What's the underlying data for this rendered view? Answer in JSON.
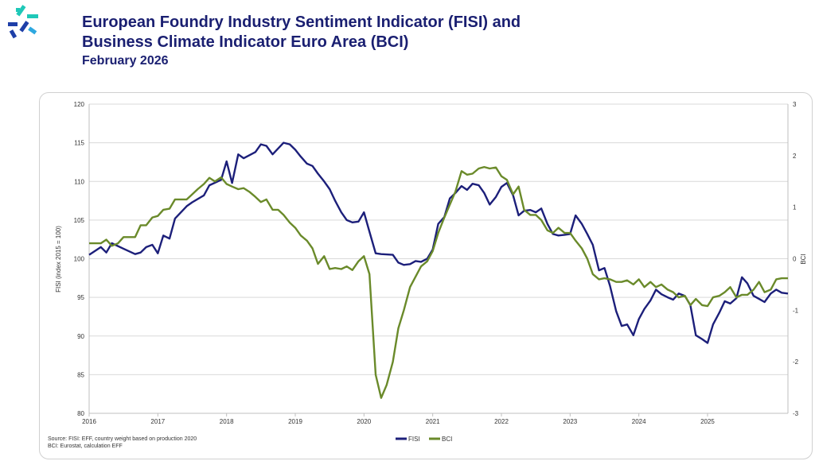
{
  "header": {
    "title_line1": "European Foundry Industry Sentiment Indicator (FISI) and",
    "title_line2": "Business Climate Indicator Euro Area (BCI)",
    "subtitle": "February 2026"
  },
  "logo": {
    "icon": "efs-logo-icon",
    "colors": [
      "#1e3fa8",
      "#1fc8b8",
      "#2ea8e0"
    ]
  },
  "source": {
    "line1": "Source: FISI: EFF, country weight based on production 2020",
    "line2": "BCI: Eurostat, calculation EFF"
  },
  "chart_data": {
    "type": "line",
    "title": "",
    "xlabel": "",
    "ylabel": "FISI (index 2015 = 100)",
    "y2label": "BCI",
    "xlim": [
      2016,
      2025.92
    ],
    "ylim": [
      80,
      120
    ],
    "y2lim": [
      -3,
      3
    ],
    "x_tick_labels": [
      "2016",
      "2017",
      "2018",
      "2019",
      "2020",
      "2021",
      "2022",
      "2023",
      "2024",
      "2025"
    ],
    "y_tick_labels": [
      "80",
      "85",
      "90",
      "95",
      "100",
      "105",
      "110",
      "115",
      "120"
    ],
    "y2_tick_labels": [
      "-3",
      "-2",
      "-1",
      "0",
      "1",
      "2",
      "3"
    ],
    "grid": true,
    "legend": "bottom-center",
    "series": [
      {
        "name": "FISI",
        "axis": "left",
        "color": "#1c1f7a",
        "points": [
          [
            2016.0,
            100.5
          ],
          [
            2016.17,
            101.5
          ],
          [
            2016.25,
            100.8
          ],
          [
            2016.33,
            102.0
          ],
          [
            2016.5,
            101.3
          ],
          [
            2016.67,
            100.6
          ],
          [
            2016.75,
            100.8
          ],
          [
            2016.83,
            101.5
          ],
          [
            2016.92,
            101.8
          ],
          [
            2017.0,
            100.7
          ],
          [
            2017.08,
            103.0
          ],
          [
            2017.17,
            102.6
          ],
          [
            2017.25,
            105.2
          ],
          [
            2017.42,
            106.8
          ],
          [
            2017.5,
            107.3
          ],
          [
            2017.67,
            108.2
          ],
          [
            2017.75,
            109.5
          ],
          [
            2017.92,
            110.2
          ],
          [
            2018.0,
            112.6
          ],
          [
            2018.08,
            109.8
          ],
          [
            2018.17,
            113.5
          ],
          [
            2018.25,
            113.0
          ],
          [
            2018.42,
            113.8
          ],
          [
            2018.5,
            114.8
          ],
          [
            2018.58,
            114.6
          ],
          [
            2018.67,
            113.5
          ],
          [
            2018.83,
            115.0
          ],
          [
            2018.92,
            114.8
          ],
          [
            2019.0,
            114.1
          ],
          [
            2019.08,
            113.2
          ],
          [
            2019.17,
            112.3
          ],
          [
            2019.25,
            112.0
          ],
          [
            2019.33,
            111.0
          ],
          [
            2019.42,
            110.0
          ],
          [
            2019.5,
            109.0
          ],
          [
            2019.58,
            107.5
          ],
          [
            2019.67,
            106.0
          ],
          [
            2019.75,
            105.0
          ],
          [
            2019.83,
            104.7
          ],
          [
            2019.92,
            104.8
          ],
          [
            2020.0,
            106.0
          ],
          [
            2020.08,
            103.5
          ],
          [
            2020.17,
            100.7
          ],
          [
            2020.25,
            100.6
          ],
          [
            2020.42,
            100.5
          ],
          [
            2020.5,
            99.5
          ],
          [
            2020.58,
            99.2
          ],
          [
            2020.67,
            99.3
          ],
          [
            2020.75,
            99.7
          ],
          [
            2020.83,
            99.6
          ],
          [
            2020.92,
            100.0
          ],
          [
            2021.0,
            101.2
          ],
          [
            2021.08,
            104.5
          ],
          [
            2021.17,
            105.4
          ],
          [
            2021.25,
            107.8
          ],
          [
            2021.33,
            108.5
          ],
          [
            2021.42,
            109.4
          ],
          [
            2021.5,
            108.9
          ],
          [
            2021.58,
            109.7
          ],
          [
            2021.67,
            109.5
          ],
          [
            2021.75,
            108.5
          ],
          [
            2021.83,
            107.0
          ],
          [
            2021.92,
            108.0
          ],
          [
            2022.0,
            109.3
          ],
          [
            2022.08,
            109.8
          ],
          [
            2022.17,
            108.2
          ],
          [
            2022.25,
            105.6
          ],
          [
            2022.33,
            106.2
          ],
          [
            2022.42,
            106.3
          ],
          [
            2022.5,
            106.0
          ],
          [
            2022.58,
            106.5
          ],
          [
            2022.67,
            104.5
          ],
          [
            2022.75,
            103.2
          ],
          [
            2022.83,
            103.0
          ],
          [
            2022.92,
            103.1
          ],
          [
            2023.0,
            103.2
          ],
          [
            2023.08,
            105.6
          ],
          [
            2023.17,
            104.5
          ],
          [
            2023.25,
            103.2
          ],
          [
            2023.33,
            101.8
          ],
          [
            2023.42,
            98.5
          ],
          [
            2023.5,
            98.8
          ],
          [
            2023.58,
            96.5
          ],
          [
            2023.67,
            93.2
          ],
          [
            2023.75,
            91.3
          ],
          [
            2023.83,
            91.5
          ],
          [
            2023.92,
            90.1
          ],
          [
            2024.0,
            92.2
          ],
          [
            2024.08,
            93.5
          ],
          [
            2024.17,
            94.6
          ],
          [
            2024.25,
            96.0
          ],
          [
            2024.33,
            95.4
          ],
          [
            2024.42,
            95.0
          ],
          [
            2024.5,
            94.7
          ],
          [
            2024.58,
            95.5
          ],
          [
            2024.67,
            95.2
          ],
          [
            2024.75,
            94.0
          ],
          [
            2024.83,
            90.1
          ],
          [
            2024.92,
            89.6
          ],
          [
            2025.0,
            89.1
          ],
          [
            2025.08,
            91.5
          ],
          [
            2025.17,
            93.0
          ],
          [
            2025.25,
            94.5
          ],
          [
            2025.33,
            94.2
          ],
          [
            2025.42,
            94.9
          ],
          [
            2025.5,
            97.6
          ],
          [
            2025.58,
            96.8
          ],
          [
            2025.67,
            95.2
          ],
          [
            2025.75,
            94.8
          ],
          [
            2025.83,
            94.4
          ],
          [
            2025.92,
            95.5
          ],
          [
            2026.0,
            96.0
          ],
          [
            2026.08,
            95.6
          ],
          [
            2026.17,
            95.5
          ]
        ]
      },
      {
        "name": "BCI",
        "axis": "right",
        "color": "#6a8a2a",
        "points": [
          [
            2016.0,
            0.3
          ],
          [
            2016.17,
            0.3
          ],
          [
            2016.25,
            0.37
          ],
          [
            2016.33,
            0.25
          ],
          [
            2016.42,
            0.3
          ],
          [
            2016.5,
            0.42
          ],
          [
            2016.67,
            0.42
          ],
          [
            2016.75,
            0.65
          ],
          [
            2016.83,
            0.65
          ],
          [
            2016.92,
            0.8
          ],
          [
            2017.0,
            0.83
          ],
          [
            2017.08,
            0.95
          ],
          [
            2017.17,
            0.97
          ],
          [
            2017.25,
            1.15
          ],
          [
            2017.33,
            1.15
          ],
          [
            2017.42,
            1.15
          ],
          [
            2017.5,
            1.25
          ],
          [
            2017.58,
            1.35
          ],
          [
            2017.67,
            1.45
          ],
          [
            2017.75,
            1.57
          ],
          [
            2017.83,
            1.5
          ],
          [
            2017.92,
            1.58
          ],
          [
            2018.0,
            1.45
          ],
          [
            2018.08,
            1.4
          ],
          [
            2018.17,
            1.35
          ],
          [
            2018.25,
            1.37
          ],
          [
            2018.33,
            1.3
          ],
          [
            2018.42,
            1.2
          ],
          [
            2018.5,
            1.1
          ],
          [
            2018.58,
            1.15
          ],
          [
            2018.67,
            0.95
          ],
          [
            2018.75,
            0.95
          ],
          [
            2018.83,
            0.85
          ],
          [
            2018.92,
            0.7
          ],
          [
            2019.0,
            0.6
          ],
          [
            2019.08,
            0.45
          ],
          [
            2019.17,
            0.35
          ],
          [
            2019.25,
            0.2
          ],
          [
            2019.33,
            -0.1
          ],
          [
            2019.42,
            0.05
          ],
          [
            2019.5,
            -0.2
          ],
          [
            2019.58,
            -0.18
          ],
          [
            2019.67,
            -0.2
          ],
          [
            2019.75,
            -0.15
          ],
          [
            2019.83,
            -0.22
          ],
          [
            2019.92,
            -0.05
          ],
          [
            2020.0,
            0.05
          ],
          [
            2020.08,
            -0.3
          ],
          [
            2020.17,
            -2.25
          ],
          [
            2020.25,
            -2.7
          ],
          [
            2020.33,
            -2.45
          ],
          [
            2020.42,
            -2.0
          ],
          [
            2020.5,
            -1.35
          ],
          [
            2020.58,
            -1.0
          ],
          [
            2020.67,
            -0.55
          ],
          [
            2020.75,
            -0.35
          ],
          [
            2020.83,
            -0.15
          ],
          [
            2020.92,
            -0.05
          ],
          [
            2021.0,
            0.15
          ],
          [
            2021.08,
            0.5
          ],
          [
            2021.17,
            0.8
          ],
          [
            2021.25,
            1.05
          ],
          [
            2021.33,
            1.3
          ],
          [
            2021.42,
            1.7
          ],
          [
            2021.5,
            1.63
          ],
          [
            2021.58,
            1.65
          ],
          [
            2021.67,
            1.75
          ],
          [
            2021.75,
            1.78
          ],
          [
            2021.83,
            1.75
          ],
          [
            2021.92,
            1.77
          ],
          [
            2022.0,
            1.6
          ],
          [
            2022.08,
            1.53
          ],
          [
            2022.17,
            1.25
          ],
          [
            2022.25,
            1.4
          ],
          [
            2022.33,
            0.95
          ],
          [
            2022.42,
            0.85
          ],
          [
            2022.5,
            0.85
          ],
          [
            2022.58,
            0.75
          ],
          [
            2022.67,
            0.55
          ],
          [
            2022.75,
            0.5
          ],
          [
            2022.83,
            0.6
          ],
          [
            2022.92,
            0.5
          ],
          [
            2023.0,
            0.5
          ],
          [
            2023.08,
            0.35
          ],
          [
            2023.17,
            0.2
          ],
          [
            2023.25,
            0.0
          ],
          [
            2023.33,
            -0.3
          ],
          [
            2023.42,
            -0.4
          ],
          [
            2023.5,
            -0.38
          ],
          [
            2023.58,
            -0.4
          ],
          [
            2023.67,
            -0.45
          ],
          [
            2023.75,
            -0.45
          ],
          [
            2023.83,
            -0.42
          ],
          [
            2023.92,
            -0.5
          ],
          [
            2024.0,
            -0.4
          ],
          [
            2024.08,
            -0.55
          ],
          [
            2024.17,
            -0.45
          ],
          [
            2024.25,
            -0.55
          ],
          [
            2024.33,
            -0.5
          ],
          [
            2024.42,
            -0.6
          ],
          [
            2024.5,
            -0.65
          ],
          [
            2024.58,
            -0.75
          ],
          [
            2024.67,
            -0.72
          ],
          [
            2024.75,
            -0.9
          ],
          [
            2024.83,
            -0.78
          ],
          [
            2024.92,
            -0.9
          ],
          [
            2025.0,
            -0.92
          ],
          [
            2025.08,
            -0.75
          ],
          [
            2025.17,
            -0.72
          ],
          [
            2025.25,
            -0.65
          ],
          [
            2025.33,
            -0.55
          ],
          [
            2025.42,
            -0.75
          ],
          [
            2025.5,
            -0.7
          ],
          [
            2025.58,
            -0.7
          ],
          [
            2025.67,
            -0.6
          ],
          [
            2025.75,
            -0.45
          ],
          [
            2025.83,
            -0.65
          ],
          [
            2025.92,
            -0.6
          ],
          [
            2026.0,
            -0.4
          ],
          [
            2026.08,
            -0.38
          ],
          [
            2026.17,
            -0.38
          ]
        ]
      }
    ]
  }
}
